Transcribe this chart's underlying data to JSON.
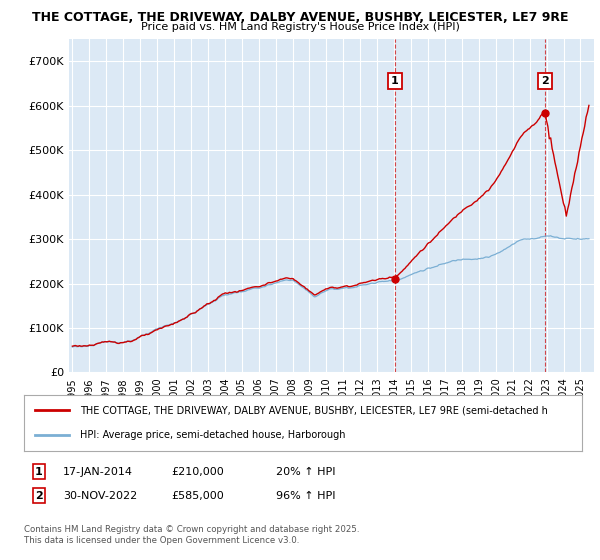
{
  "title_line1": "THE COTTAGE, THE DRIVEWAY, DALBY AVENUE, BUSHBY, LEICESTER, LE7 9RE",
  "title_line2": "Price paid vs. HM Land Registry's House Price Index (HPI)",
  "fig_bg_color": "#ffffff",
  "plot_bg_color": "#dce9f5",
  "red_line_color": "#cc0000",
  "blue_line_color": "#7bafd4",
  "grid_color": "#ffffff",
  "yticks": [
    0,
    100000,
    200000,
    300000,
    400000,
    500000,
    600000,
    700000
  ],
  "ytick_labels": [
    "£0",
    "£100K",
    "£200K",
    "£300K",
    "£400K",
    "£500K",
    "£600K",
    "£700K"
  ],
  "xmin": 1994.8,
  "xmax": 2025.8,
  "ymin": 0,
  "ymax": 750000,
  "purchase1_x": 2014.05,
  "purchase1_y": 210000,
  "purchase2_x": 2022.92,
  "purchase2_y": 585000,
  "legend_red_label": "THE COTTAGE, THE DRIVEWAY, DALBY AVENUE, BUSHBY, LEICESTER, LE7 9RE (semi-detached h",
  "legend_blue_label": "HPI: Average price, semi-detached house, Harborough",
  "footer": "Contains HM Land Registry data © Crown copyright and database right 2025.\nThis data is licensed under the Open Government Licence v3.0."
}
